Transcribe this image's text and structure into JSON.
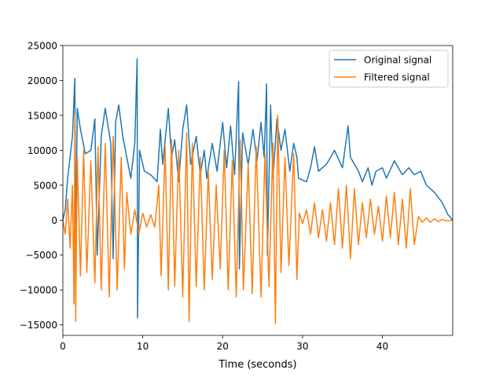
{
  "chart_data": {
    "type": "line",
    "title": "",
    "xlabel": "Time (seconds)",
    "ylabel": "",
    "xlim": [
      0,
      48.8
    ],
    "ylim": [
      -16500,
      25000
    ],
    "x_ticks": [
      0,
      10,
      20,
      30,
      40
    ],
    "x_tick_labels": [
      "0",
      "10",
      "20",
      "30",
      "40"
    ],
    "y_ticks": [
      -15000,
      -10000,
      -5000,
      0,
      5000,
      10000,
      15000,
      20000,
      25000
    ],
    "y_tick_labels": [
      "−15000",
      "−10000",
      "−5000",
      "0",
      "5000",
      "10000",
      "15000",
      "20000",
      "25000"
    ],
    "legend_position": "top-right",
    "series": [
      {
        "name": "Original signal",
        "color": "#1f77b4",
        "points": [
          [
            0.0,
            0
          ],
          [
            0.3,
            1500
          ],
          [
            0.6,
            6000
          ],
          [
            0.9,
            9000
          ],
          [
            1.2,
            12000
          ],
          [
            1.5,
            20300
          ],
          [
            1.6,
            -4000
          ],
          [
            1.8,
            16000
          ],
          [
            2.2,
            13000
          ],
          [
            2.8,
            9500
          ],
          [
            3.5,
            10000
          ],
          [
            4.0,
            14500
          ],
          [
            4.3,
            -5000
          ],
          [
            4.8,
            12000
          ],
          [
            5.3,
            16000
          ],
          [
            6.0,
            11000
          ],
          [
            6.3,
            -5500
          ],
          [
            6.6,
            14000
          ],
          [
            7.0,
            16500
          ],
          [
            7.5,
            12000
          ],
          [
            8.0,
            9000
          ],
          [
            8.5,
            6000
          ],
          [
            9.0,
            11000
          ],
          [
            9.3,
            23100
          ],
          [
            9.35,
            -14000
          ],
          [
            9.6,
            10000
          ],
          [
            10.2,
            7000
          ],
          [
            11.0,
            6500
          ],
          [
            11.8,
            5500
          ],
          [
            12.2,
            13000
          ],
          [
            12.5,
            8000
          ],
          [
            13.2,
            16000
          ],
          [
            13.6,
            9000
          ],
          [
            14.0,
            11500
          ],
          [
            14.5,
            5500
          ],
          [
            15.0,
            13000
          ],
          [
            15.5,
            16500
          ],
          [
            16.0,
            8000
          ],
          [
            16.7,
            12000
          ],
          [
            17.2,
            6500
          ],
          [
            17.7,
            10000
          ],
          [
            18.0,
            6000
          ],
          [
            18.7,
            11000
          ],
          [
            19.3,
            7000
          ],
          [
            20.0,
            14000
          ],
          [
            20.5,
            7500
          ],
          [
            21.0,
            13500
          ],
          [
            21.5,
            6500
          ],
          [
            22.0,
            19800
          ],
          [
            22.1,
            -7000
          ],
          [
            22.5,
            12500
          ],
          [
            23.2,
            8000
          ],
          [
            23.8,
            13000
          ],
          [
            24.3,
            8500
          ],
          [
            24.8,
            14000
          ],
          [
            25.2,
            9000
          ],
          [
            25.5,
            19500
          ],
          [
            25.6,
            -5000
          ],
          [
            26.0,
            16500
          ],
          [
            26.3,
            6000
          ],
          [
            26.8,
            14500
          ],
          [
            27.3,
            10000
          ],
          [
            27.8,
            13000
          ],
          [
            28.4,
            7000
          ],
          [
            28.9,
            11000
          ],
          [
            29.3,
            9000
          ],
          [
            29.5,
            6000
          ],
          [
            30.5,
            5500
          ],
          [
            31.0,
            7500
          ],
          [
            31.5,
            10500
          ],
          [
            32.0,
            7000
          ],
          [
            33.0,
            8000
          ],
          [
            34.0,
            10000
          ],
          [
            35.0,
            7500
          ],
          [
            35.7,
            13500
          ],
          [
            36.0,
            9000
          ],
          [
            37.0,
            7000
          ],
          [
            37.5,
            5500
          ],
          [
            38.2,
            7500
          ],
          [
            38.7,
            5000
          ],
          [
            39.2,
            7000
          ],
          [
            40.0,
            7500
          ],
          [
            40.5,
            6000
          ],
          [
            41.5,
            8500
          ],
          [
            42.5,
            6500
          ],
          [
            43.3,
            7500
          ],
          [
            44.0,
            6500
          ],
          [
            44.8,
            7000
          ],
          [
            45.5,
            5000
          ],
          [
            46.5,
            4000
          ],
          [
            47.5,
            2500
          ],
          [
            48.2,
            800
          ],
          [
            48.8,
            0
          ]
        ]
      },
      {
        "name": "Filtered signal",
        "color": "#ff7f0e",
        "points": [
          [
            0.0,
            0
          ],
          [
            0.3,
            -2000
          ],
          [
            0.6,
            3000
          ],
          [
            0.9,
            -4000
          ],
          [
            1.2,
            5000
          ],
          [
            1.4,
            -12000
          ],
          [
            1.5,
            15000
          ],
          [
            1.6,
            -14500
          ],
          [
            1.8,
            9000
          ],
          [
            2.2,
            -8000
          ],
          [
            2.6,
            10000
          ],
          [
            3.0,
            -7500
          ],
          [
            3.5,
            8500
          ],
          [
            4.0,
            -9000
          ],
          [
            4.4,
            10500
          ],
          [
            4.8,
            -10000
          ],
          [
            5.3,
            11000
          ],
          [
            5.8,
            -11000
          ],
          [
            6.3,
            12000
          ],
          [
            6.8,
            -10000
          ],
          [
            7.3,
            9000
          ],
          [
            7.7,
            -7000
          ],
          [
            8.0,
            4000
          ],
          [
            8.5,
            -2000
          ],
          [
            9.0,
            1500
          ],
          [
            9.5,
            -2000
          ],
          [
            10.0,
            1000
          ],
          [
            10.5,
            -1000
          ],
          [
            11.0,
            800
          ],
          [
            11.5,
            -1000
          ],
          [
            12.0,
            5000
          ],
          [
            12.3,
            -8000
          ],
          [
            12.8,
            10500
          ],
          [
            13.2,
            -10000
          ],
          [
            13.6,
            11500
          ],
          [
            14.0,
            -9500
          ],
          [
            14.5,
            10000
          ],
          [
            15.0,
            -11000
          ],
          [
            15.5,
            12500
          ],
          [
            15.8,
            -14500
          ],
          [
            16.2,
            11000
          ],
          [
            16.7,
            -9500
          ],
          [
            17.2,
            9000
          ],
          [
            17.7,
            -10000
          ],
          [
            18.2,
            7000
          ],
          [
            18.7,
            -8500
          ],
          [
            19.2,
            5000
          ],
          [
            19.7,
            -7000
          ],
          [
            20.2,
            10000
          ],
          [
            20.7,
            -10000
          ],
          [
            21.2,
            8500
          ],
          [
            21.7,
            -11000
          ],
          [
            22.2,
            11500
          ],
          [
            22.6,
            -10000
          ],
          [
            23.2,
            8000
          ],
          [
            23.7,
            -10500
          ],
          [
            24.2,
            10500
          ],
          [
            24.8,
            -11000
          ],
          [
            25.3,
            9500
          ],
          [
            25.8,
            -9500
          ],
          [
            26.3,
            11000
          ],
          [
            26.6,
            -14800
          ],
          [
            26.9,
            15000
          ],
          [
            27.3,
            -7500
          ],
          [
            27.8,
            9000
          ],
          [
            28.3,
            -6500
          ],
          [
            28.9,
            9500
          ],
          [
            29.3,
            -8500
          ],
          [
            29.6,
            1000
          ],
          [
            30.0,
            -500
          ],
          [
            30.5,
            1500
          ],
          [
            31.0,
            -2000
          ],
          [
            31.5,
            2500
          ],
          [
            32.0,
            -2500
          ],
          [
            32.5,
            1500
          ],
          [
            33.0,
            -3000
          ],
          [
            33.5,
            2500
          ],
          [
            34.0,
            -3500
          ],
          [
            34.5,
            4500
          ],
          [
            35.0,
            -4000
          ],
          [
            35.5,
            5000
          ],
          [
            36.0,
            -5500
          ],
          [
            36.5,
            4500
          ],
          [
            37.0,
            -3500
          ],
          [
            37.5,
            2500
          ],
          [
            38.0,
            -2500
          ],
          [
            38.5,
            3000
          ],
          [
            39.0,
            -2000
          ],
          [
            39.5,
            2000
          ],
          [
            40.0,
            -3000
          ],
          [
            40.5,
            3500
          ],
          [
            41.0,
            -2500
          ],
          [
            41.5,
            4000
          ],
          [
            42.0,
            -3500
          ],
          [
            42.5,
            3000
          ],
          [
            43.0,
            -4000
          ],
          [
            43.5,
            4500
          ],
          [
            44.0,
            -3500
          ],
          [
            44.5,
            500
          ],
          [
            45.0,
            -300
          ],
          [
            45.5,
            300
          ],
          [
            46.0,
            -300
          ],
          [
            46.5,
            200
          ],
          [
            47.0,
            -200
          ],
          [
            47.5,
            100
          ],
          [
            48.0,
            -100
          ],
          [
            48.8,
            0
          ]
        ]
      }
    ]
  }
}
